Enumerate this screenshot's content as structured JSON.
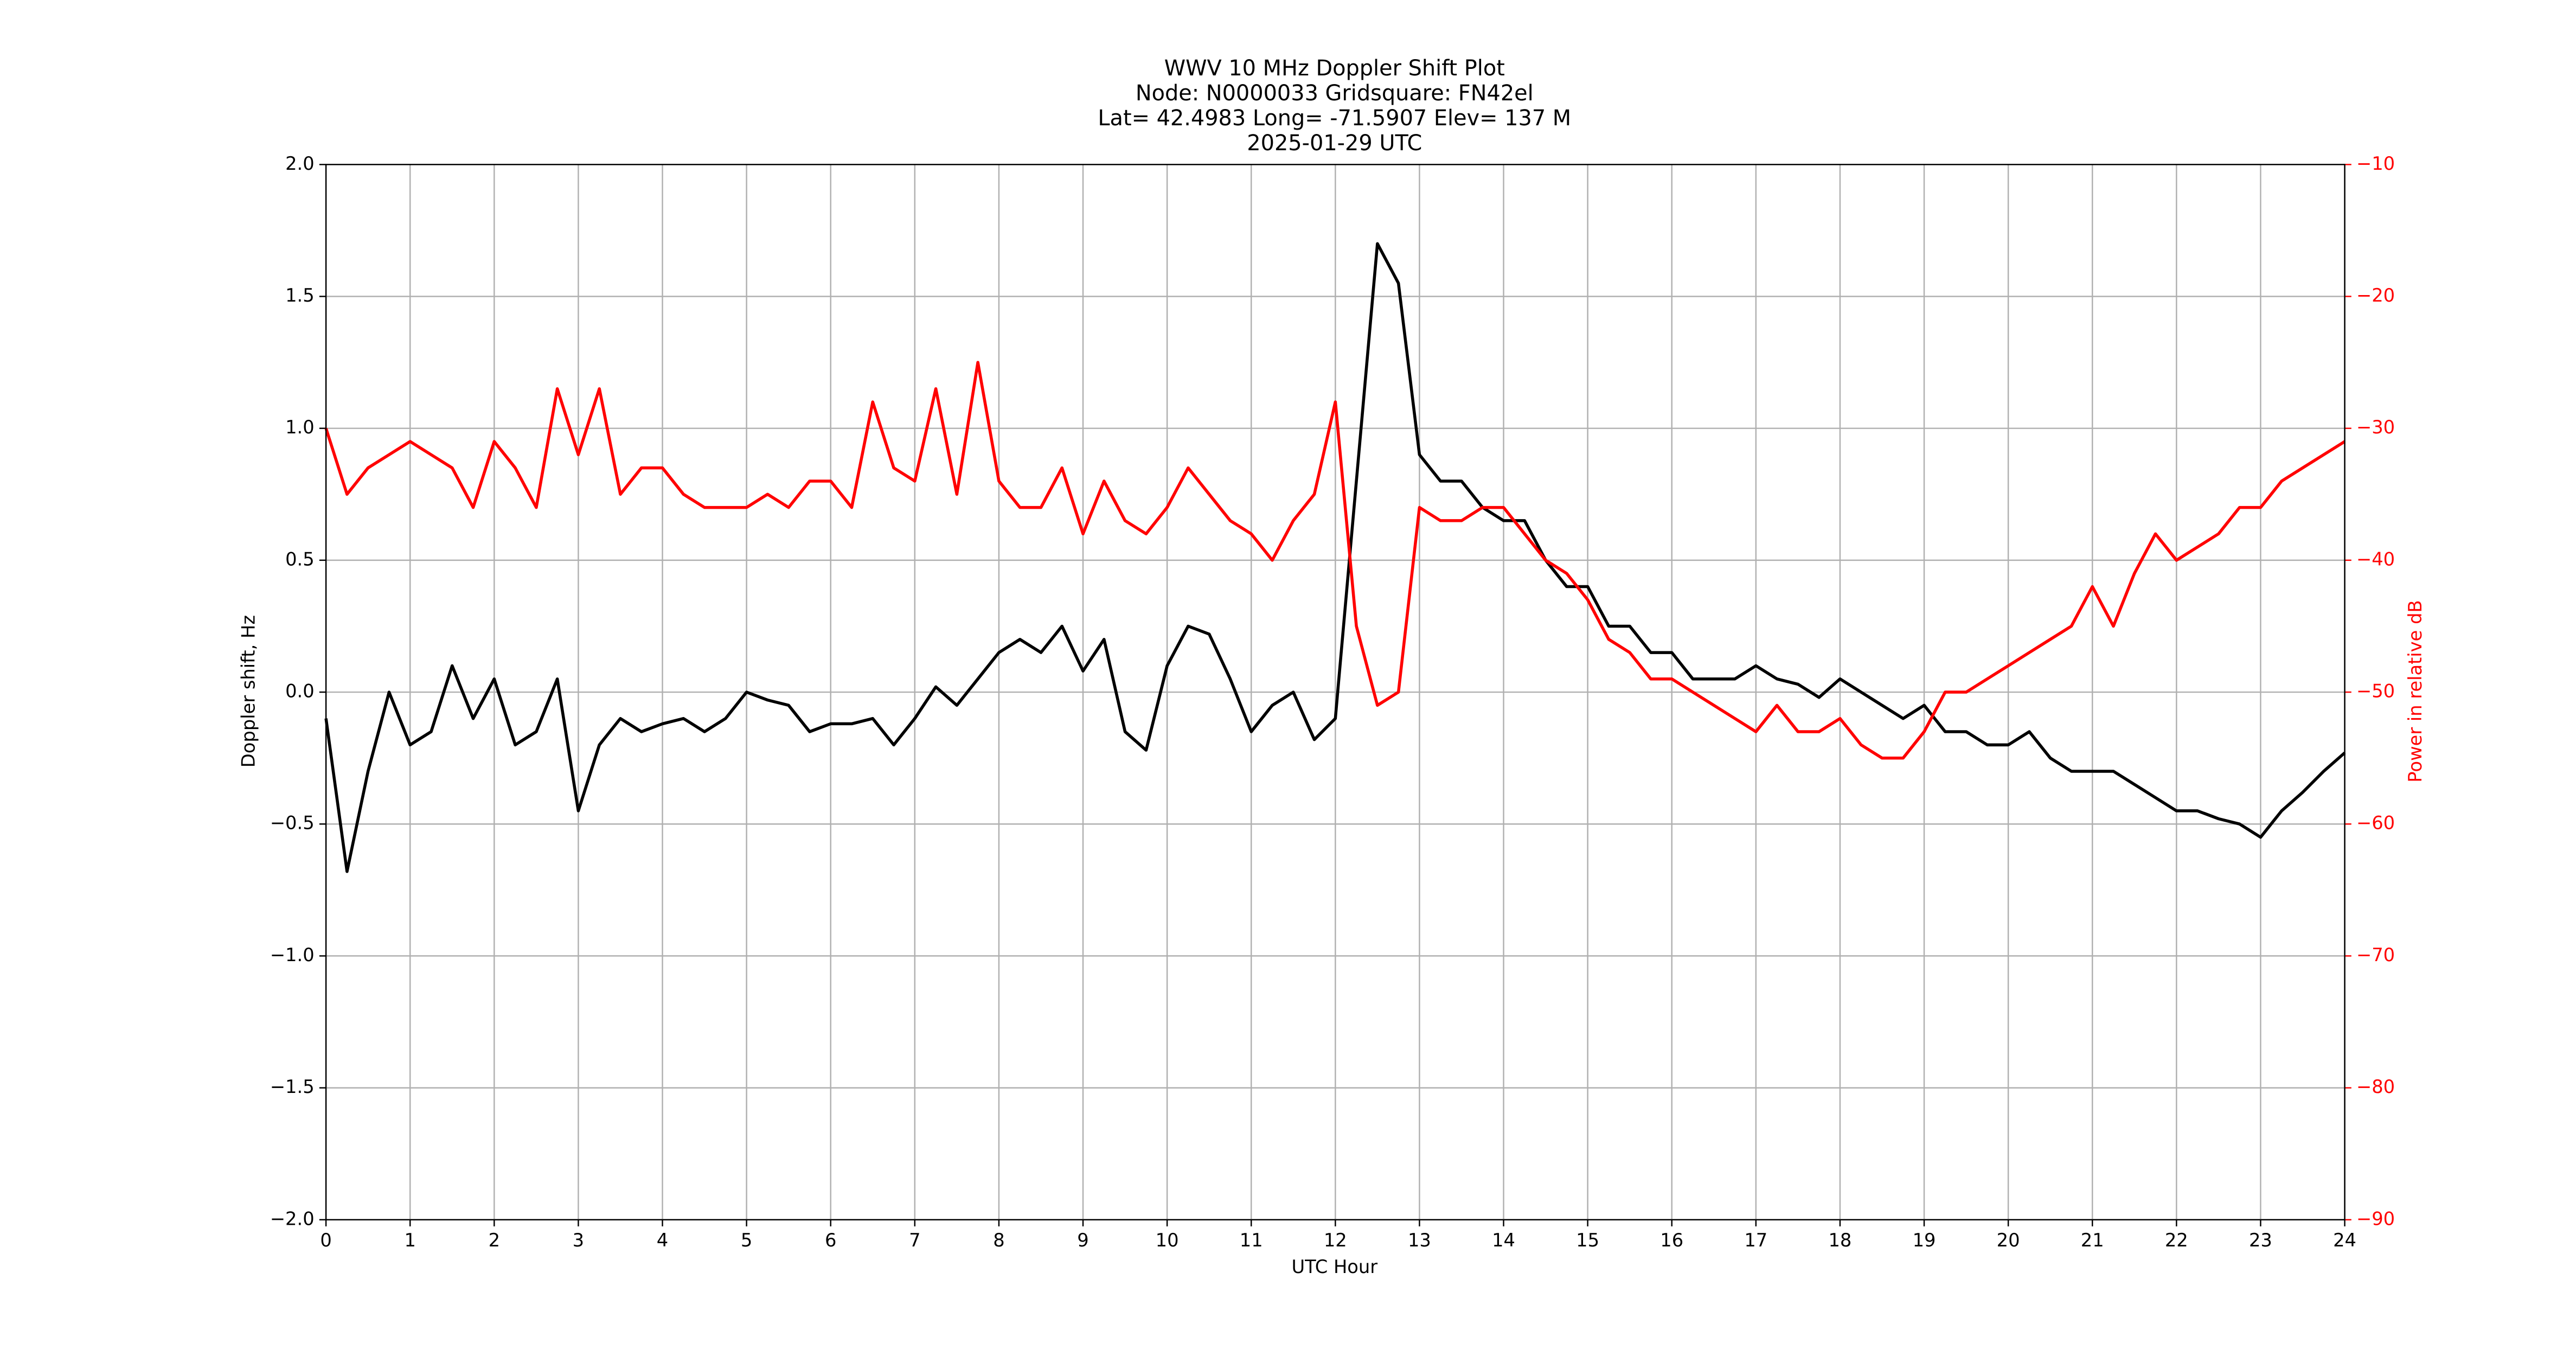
{
  "chart_data": {
    "type": "line",
    "title": [
      "WWV 10 MHz Doppler Shift Plot",
      "Node:  N0000033     Gridsquare:  FN42el",
      "Lat= 42.4983    Long= -71.5907    Elev= 137 M",
      "2025-01-29  UTC"
    ],
    "xlabel": "UTC Hour",
    "ylabel": "Doppler shift, Hz",
    "y2label": "Power in relative dB",
    "x": [
      0,
      0.25,
      0.5,
      0.75,
      1,
      1.25,
      1.5,
      1.75,
      2,
      2.25,
      2.5,
      2.75,
      3,
      3.25,
      3.5,
      3.75,
      4,
      4.25,
      4.5,
      4.75,
      5,
      5.25,
      5.5,
      5.75,
      6,
      6.25,
      6.5,
      6.75,
      7,
      7.25,
      7.5,
      7.75,
      8,
      8.25,
      8.5,
      8.75,
      9,
      9.25,
      9.5,
      9.75,
      10,
      10.25,
      10.5,
      10.75,
      11,
      11.25,
      11.5,
      11.75,
      12,
      12.25,
      12.5,
      12.75,
      13,
      13.25,
      13.5,
      13.75,
      14,
      14.25,
      14.5,
      14.75,
      15,
      15.25,
      15.5,
      15.75,
      16,
      16.25,
      16.5,
      16.75,
      17,
      17.25,
      17.5,
      17.75,
      18,
      18.25,
      18.5,
      18.75,
      19,
      19.25,
      19.5,
      19.75,
      20,
      20.25,
      20.5,
      20.75,
      21,
      21.25,
      21.5,
      21.75,
      22,
      22.25,
      22.5,
      22.75,
      23,
      23.25,
      23.5,
      23.75,
      24
    ],
    "series": [
      {
        "name": "Doppler shift",
        "color": "#000000",
        "axis": "y",
        "values": [
          -0.1,
          -0.68,
          -0.3,
          0.0,
          -0.2,
          -0.15,
          0.1,
          -0.1,
          0.05,
          -0.2,
          -0.15,
          0.05,
          -0.45,
          -0.2,
          -0.1,
          -0.15,
          -0.12,
          -0.1,
          -0.15,
          -0.1,
          0.0,
          -0.03,
          -0.05,
          -0.15,
          -0.12,
          -0.12,
          -0.1,
          -0.2,
          -0.1,
          0.02,
          -0.05,
          0.05,
          0.15,
          0.2,
          0.15,
          0.25,
          0.08,
          0.2,
          -0.15,
          -0.22,
          0.1,
          0.25,
          0.22,
          0.05,
          -0.15,
          -0.05,
          0.0,
          -0.18,
          -0.1,
          0.8,
          1.7,
          1.55,
          0.9,
          0.8,
          0.8,
          0.7,
          0.65,
          0.65,
          0.5,
          0.4,
          0.4,
          0.25,
          0.25,
          0.15,
          0.15,
          0.05,
          0.05,
          0.05,
          0.1,
          0.05,
          0.03,
          -0.02,
          0.05,
          0.0,
          -0.05,
          -0.1,
          -0.05,
          -0.15,
          -0.15,
          -0.2,
          -0.2,
          -0.15,
          -0.25,
          -0.3,
          -0.3,
          -0.3,
          -0.35,
          -0.4,
          -0.45,
          -0.45,
          -0.48,
          -0.5,
          -0.55,
          -0.45,
          -0.38,
          -0.3,
          -0.23
        ]
      },
      {
        "name": "Power",
        "color": "#ff0000",
        "axis": "y2",
        "values": [
          -30,
          -35,
          -33,
          -32,
          -31,
          -32,
          -33,
          -36,
          -31,
          -33,
          -36,
          -27,
          -32,
          -27,
          -35,
          -33,
          -33,
          -35,
          -36,
          -36,
          -36,
          -35,
          -36,
          -34,
          -34,
          -36,
          -28,
          -33,
          -34,
          -27,
          -35,
          -25,
          -34,
          -36,
          -36,
          -33,
          -38,
          -34,
          -37,
          -38,
          -36,
          -33,
          -35,
          -37,
          -38,
          -40,
          -37,
          -35,
          -28,
          -45,
          -51,
          -50,
          -36,
          -37,
          -37,
          -36,
          -36,
          -38,
          -40,
          -41,
          -43,
          -46,
          -47,
          -49,
          -49,
          -50,
          -51,
          -52,
          -53,
          -51,
          -53,
          -53,
          -52,
          -54,
          -55,
          -55,
          -53,
          -50,
          -50,
          -49,
          -48,
          -47,
          -46,
          -45,
          -42,
          -45,
          -41,
          -38,
          -40,
          -39,
          -38,
          -36,
          -36,
          -34,
          -33,
          -32,
          -31
        ]
      }
    ],
    "xlim": [
      0,
      24
    ],
    "xticks": [
      0,
      1,
      2,
      3,
      4,
      5,
      6,
      7,
      8,
      9,
      10,
      11,
      12,
      13,
      14,
      15,
      16,
      17,
      18,
      19,
      20,
      21,
      22,
      23,
      24
    ],
    "ylim": [
      -2,
      2
    ],
    "yticks": [
      {
        "value": -2,
        "label": "−2.0"
      },
      {
        "value": -1.5,
        "label": "−1.5"
      },
      {
        "value": -1,
        "label": "−1.0"
      },
      {
        "value": -0.5,
        "label": "−0.5"
      },
      {
        "value": 0,
        "label": "0.0"
      },
      {
        "value": 0.5,
        "label": "0.5"
      },
      {
        "value": 1,
        "label": "1.0"
      },
      {
        "value": 1.5,
        "label": "1.5"
      },
      {
        "value": 2,
        "label": "2.0"
      }
    ],
    "y2lim": [
      -90,
      -10
    ],
    "y2ticks": [
      {
        "value": -90,
        "label": "−90"
      },
      {
        "value": -80,
        "label": "−80"
      },
      {
        "value": -70,
        "label": "−70"
      },
      {
        "value": -60,
        "label": "−60"
      },
      {
        "value": -50,
        "label": "−50"
      },
      {
        "value": -40,
        "label": "−40"
      },
      {
        "value": -30,
        "label": "−30"
      },
      {
        "value": -20,
        "label": "−20"
      },
      {
        "value": -10,
        "label": "−10"
      }
    ],
    "grid": true,
    "y2color": "#ff0000"
  }
}
